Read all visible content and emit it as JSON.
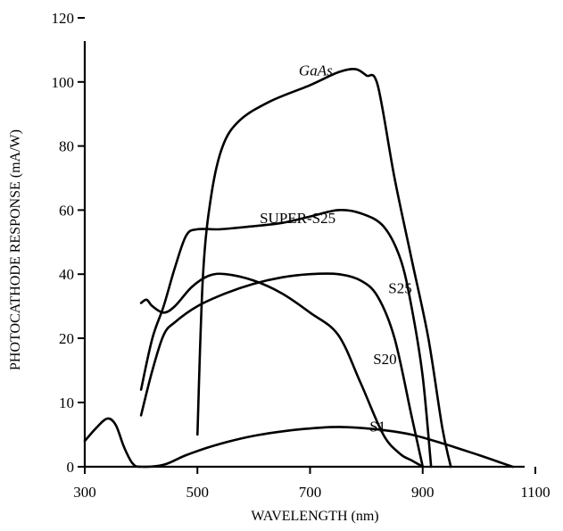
{
  "chart_data": {
    "type": "line",
    "xlabel": "WAVELENGTH (nm)",
    "ylabel": "PHOTOCATHODE RESPONSE (mA/W)",
    "xlim": [
      300,
      1100
    ],
    "ylim": [
      0,
      120
    ],
    "xticks": [
      300,
      500,
      700,
      900,
      1100
    ],
    "yticks": [
      0,
      10,
      20,
      40,
      60,
      80,
      100,
      120
    ],
    "x_tick_labels": [
      "300",
      "500",
      "700",
      "900",
      "1100"
    ],
    "y_tick_labels": [
      "0",
      "10",
      "20",
      "40",
      "60",
      "80",
      "100",
      "120"
    ],
    "grid": false,
    "legend": "none",
    "series": [
      {
        "name": "GaAs",
        "italic": true,
        "label_at": [
          710,
          102
        ],
        "points": [
          [
            500,
            5
          ],
          [
            510,
            40
          ],
          [
            525,
            65
          ],
          [
            545,
            80
          ],
          [
            575,
            88
          ],
          [
            630,
            94
          ],
          [
            700,
            99
          ],
          [
            750,
            103
          ],
          [
            780,
            104
          ],
          [
            800,
            102
          ],
          [
            820,
            99
          ],
          [
            850,
            70
          ],
          [
            880,
            45
          ],
          [
            910,
            20
          ],
          [
            935,
            6
          ],
          [
            950,
            0
          ]
        ]
      },
      {
        "name": "SUPER-S25",
        "italic": false,
        "label_at": [
          678,
          56
        ],
        "points": [
          [
            400,
            12
          ],
          [
            420,
            20
          ],
          [
            440,
            30
          ],
          [
            460,
            42
          ],
          [
            480,
            52
          ],
          [
            500,
            54
          ],
          [
            540,
            54
          ],
          [
            600,
            55
          ],
          [
            650,
            56
          ],
          [
            700,
            58
          ],
          [
            750,
            60
          ],
          [
            790,
            59
          ],
          [
            830,
            55
          ],
          [
            860,
            45
          ],
          [
            880,
            30
          ],
          [
            900,
            14
          ],
          [
            915,
            0
          ]
        ]
      },
      {
        "name": "S25",
        "italic": false,
        "label_at": [
          860,
          34
        ],
        "points": [
          [
            400,
            8
          ],
          [
            420,
            15
          ],
          [
            440,
            21
          ],
          [
            460,
            25
          ],
          [
            500,
            30
          ],
          [
            550,
            34
          ],
          [
            600,
            37
          ],
          [
            650,
            39
          ],
          [
            700,
            40
          ],
          [
            750,
            40
          ],
          [
            790,
            38
          ],
          [
            820,
            33
          ],
          [
            850,
            20
          ],
          [
            880,
            8
          ],
          [
            900,
            0
          ]
        ]
      },
      {
        "name": "S20",
        "italic": false,
        "label_at": [
          833,
          16
        ],
        "points": [
          [
            400,
            31
          ],
          [
            410,
            32
          ],
          [
            420,
            30
          ],
          [
            440,
            28
          ],
          [
            460,
            30
          ],
          [
            490,
            36
          ],
          [
            520,
            39.5
          ],
          [
            550,
            40
          ],
          [
            600,
            38
          ],
          [
            650,
            34
          ],
          [
            700,
            28
          ],
          [
            750,
            21
          ],
          [
            790,
            13
          ],
          [
            830,
            5
          ],
          [
            860,
            2
          ],
          [
            880,
            1
          ],
          [
            900,
            0
          ]
        ]
      },
      {
        "name": "S1",
        "italic": false,
        "label_at": [
          820,
          5.5
        ],
        "points": [
          [
            300,
            4
          ],
          [
            320,
            6
          ],
          [
            340,
            7.5
          ],
          [
            355,
            6.5
          ],
          [
            370,
            3
          ],
          [
            385,
            0.5
          ],
          [
            400,
            0
          ],
          [
            440,
            0.3
          ],
          [
            480,
            1.8
          ],
          [
            530,
            3.3
          ],
          [
            600,
            4.8
          ],
          [
            680,
            5.8
          ],
          [
            750,
            6.2
          ],
          [
            820,
            5.8
          ],
          [
            880,
            5
          ],
          [
            940,
            3.5
          ],
          [
            1000,
            1.8
          ],
          [
            1040,
            0.6
          ],
          [
            1060,
            0
          ]
        ]
      }
    ],
    "series_labels": [
      "GaAs",
      "SUPER-S25",
      "S25",
      "S20",
      "S1"
    ]
  }
}
